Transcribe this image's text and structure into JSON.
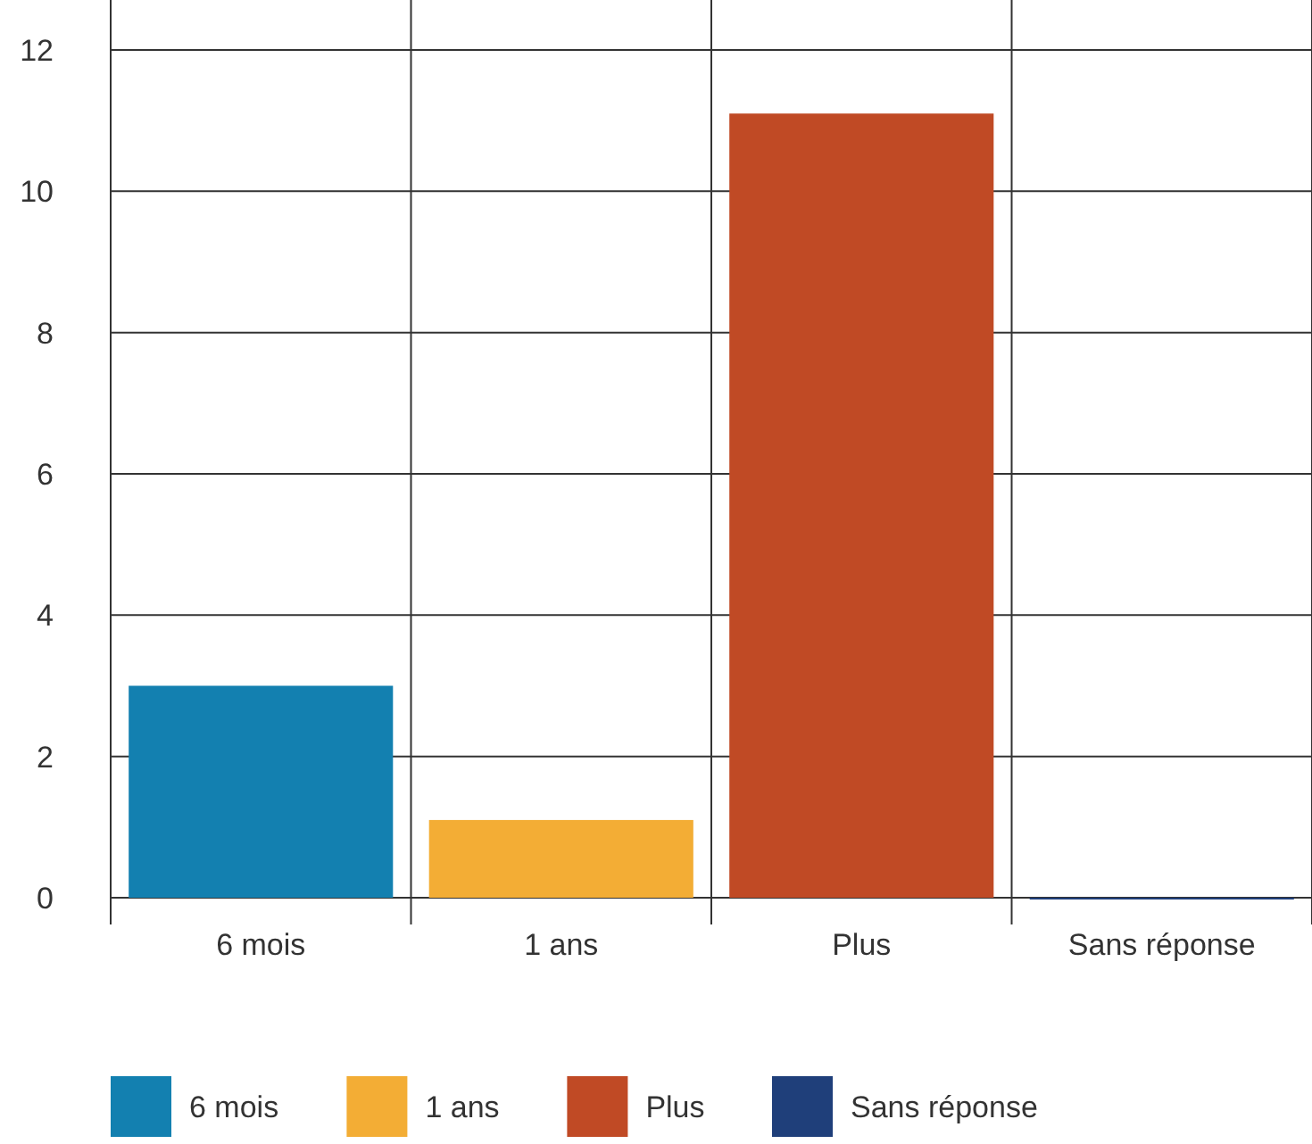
{
  "chart_data": {
    "type": "bar",
    "categories": [
      "6 mois",
      "1 ans",
      "Plus",
      "Sans réponse"
    ],
    "series": [
      {
        "name": "6 mois",
        "color": "#1380b0",
        "values": [
          3,
          null,
          null,
          null
        ]
      },
      {
        "name": "1 ans",
        "color": "#f3ad35",
        "values": [
          null,
          1.1,
          null,
          null
        ]
      },
      {
        "name": "Plus",
        "color": "#c04a25",
        "values": [
          null,
          null,
          11.1,
          null
        ]
      },
      {
        "name": "Sans réponse",
        "color": "#1f3f7a",
        "values": [
          null,
          null,
          null,
          0
        ]
      }
    ],
    "ylim": [
      0,
      12
    ],
    "yticks": [
      0,
      2,
      4,
      6,
      8,
      10,
      12
    ],
    "grid": true,
    "legend": "bottom"
  }
}
